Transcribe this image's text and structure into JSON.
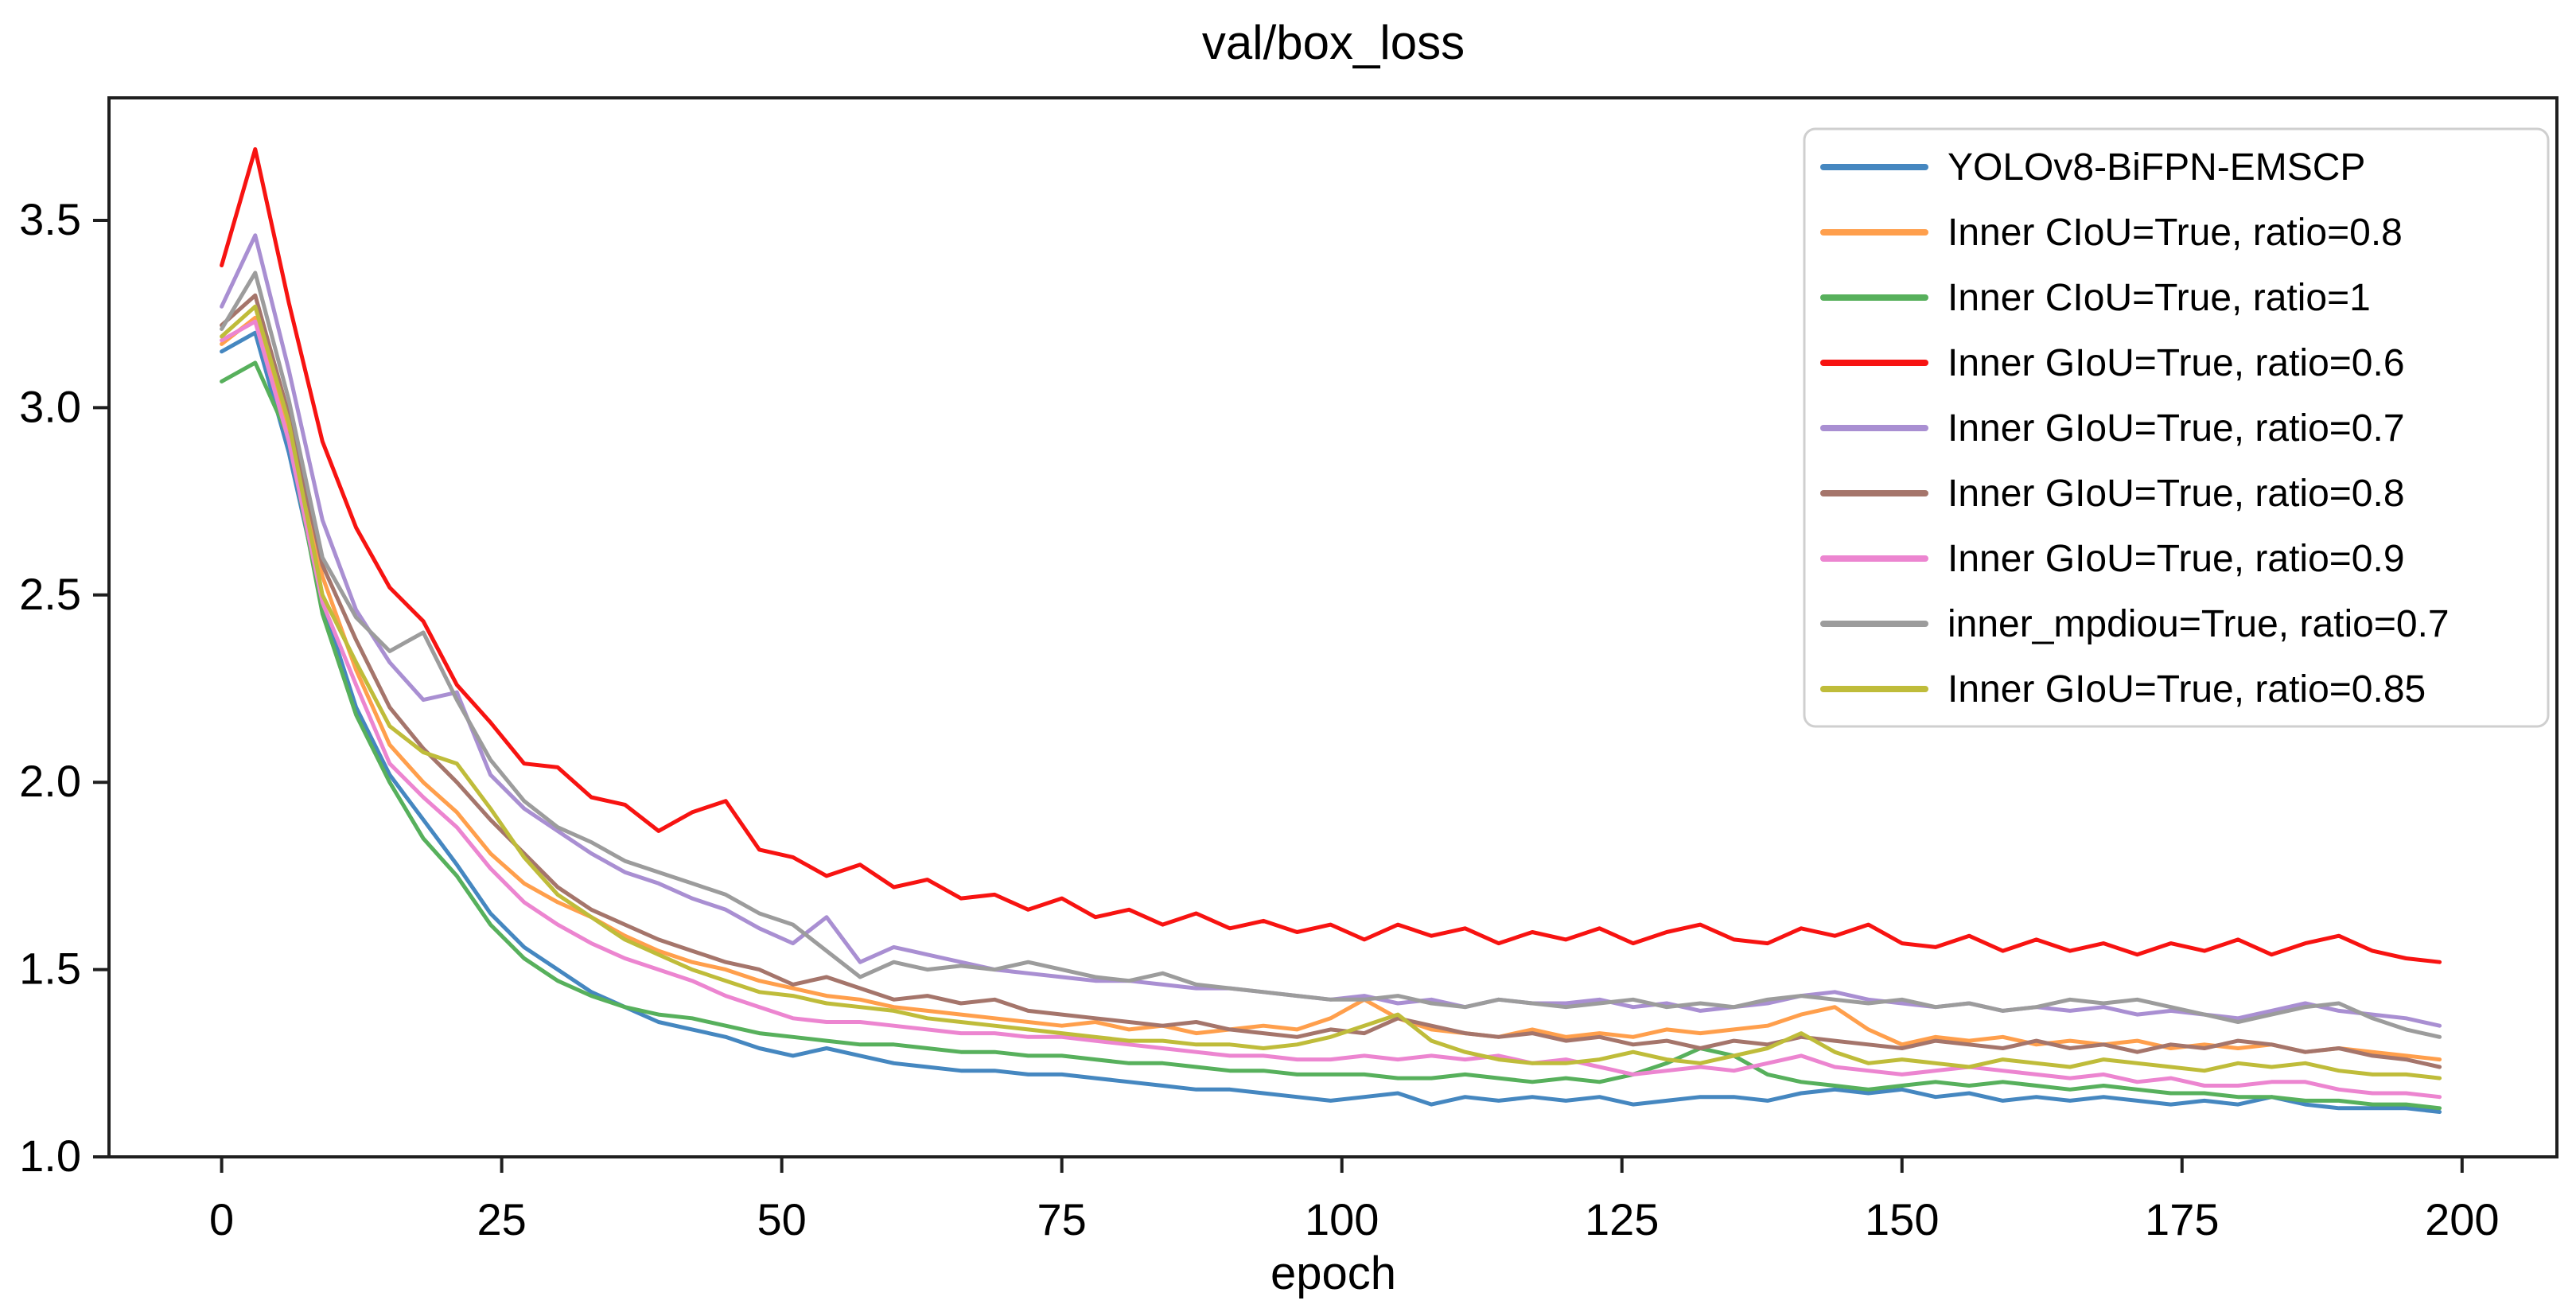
{
  "figure": {
    "title": "val/box_loss",
    "xlabel": "epoch"
  },
  "chart_data": {
    "type": "line",
    "title": "val/box_loss",
    "xlabel": "epoch",
    "ylabel": "",
    "xlim": [
      -10,
      208.5
    ],
    "ylim": [
      1.0,
      3.83
    ],
    "xticks": [
      "0",
      "25",
      "50",
      "75",
      "100",
      "125",
      "150",
      "175",
      "200"
    ],
    "yticks": [
      "1.0",
      "1.5",
      "2.0",
      "2.5",
      "3.0",
      "3.5"
    ],
    "grid": false,
    "legend_position": "upper right",
    "x": [
      0,
      3,
      6,
      9,
      12,
      15,
      18,
      21,
      24,
      27,
      30,
      33,
      36,
      39,
      42,
      45,
      48,
      51,
      54,
      57,
      60,
      63,
      66,
      69,
      72,
      75,
      78,
      81,
      84,
      87,
      90,
      93,
      96,
      99,
      102,
      105,
      108,
      111,
      114,
      117,
      120,
      123,
      126,
      129,
      132,
      135,
      138,
      141,
      144,
      147,
      150,
      153,
      156,
      159,
      162,
      165,
      168,
      171,
      174,
      177,
      180,
      183,
      186,
      189,
      192,
      195,
      198
    ],
    "series": [
      {
        "name": "YOLOv8-BiFPN-EMSCP",
        "color": "#4587c0",
        "values": [
          3.15,
          3.2,
          2.88,
          2.48,
          2.2,
          2.02,
          1.9,
          1.78,
          1.65,
          1.56,
          1.5,
          1.44,
          1.4,
          1.36,
          1.34,
          1.32,
          1.29,
          1.27,
          1.29,
          1.27,
          1.25,
          1.24,
          1.23,
          1.23,
          1.22,
          1.22,
          1.21,
          1.2,
          1.19,
          1.18,
          1.18,
          1.17,
          1.16,
          1.15,
          1.16,
          1.17,
          1.14,
          1.16,
          1.15,
          1.16,
          1.15,
          1.16,
          1.14,
          1.15,
          1.16,
          1.16,
          1.15,
          1.17,
          1.18,
          1.17,
          1.18,
          1.16,
          1.17,
          1.15,
          1.16,
          1.15,
          1.16,
          1.15,
          1.14,
          1.15,
          1.14,
          1.16,
          1.14,
          1.13,
          1.13,
          1.13,
          1.12
        ]
      },
      {
        "name": "Inner CIoU=True, ratio=0.8",
        "color": "#ff9f4c",
        "values": [
          3.17,
          3.24,
          2.93,
          2.55,
          2.3,
          2.1,
          2.0,
          1.92,
          1.81,
          1.73,
          1.68,
          1.64,
          1.59,
          1.55,
          1.52,
          1.5,
          1.47,
          1.45,
          1.43,
          1.42,
          1.4,
          1.39,
          1.38,
          1.37,
          1.36,
          1.35,
          1.36,
          1.34,
          1.35,
          1.33,
          1.34,
          1.35,
          1.34,
          1.37,
          1.42,
          1.37,
          1.34,
          1.33,
          1.32,
          1.34,
          1.32,
          1.33,
          1.32,
          1.34,
          1.33,
          1.34,
          1.35,
          1.38,
          1.4,
          1.34,
          1.3,
          1.32,
          1.31,
          1.32,
          1.3,
          1.31,
          1.3,
          1.31,
          1.29,
          1.3,
          1.29,
          1.3,
          1.28,
          1.29,
          1.28,
          1.27,
          1.26
        ]
      },
      {
        "name": "Inner CIoU=True, ratio=1",
        "color": "#57b05c",
        "values": [
          3.07,
          3.12,
          2.92,
          2.45,
          2.18,
          2.0,
          1.85,
          1.75,
          1.62,
          1.53,
          1.47,
          1.43,
          1.4,
          1.38,
          1.37,
          1.35,
          1.33,
          1.32,
          1.31,
          1.3,
          1.3,
          1.29,
          1.28,
          1.28,
          1.27,
          1.27,
          1.26,
          1.25,
          1.25,
          1.24,
          1.23,
          1.23,
          1.22,
          1.22,
          1.22,
          1.21,
          1.21,
          1.22,
          1.21,
          1.2,
          1.21,
          1.2,
          1.22,
          1.25,
          1.29,
          1.27,
          1.22,
          1.2,
          1.19,
          1.18,
          1.19,
          1.2,
          1.19,
          1.2,
          1.19,
          1.18,
          1.19,
          1.18,
          1.17,
          1.17,
          1.16,
          1.16,
          1.15,
          1.15,
          1.14,
          1.14,
          1.13
        ]
      },
      {
        "name": "Inner GIoU=True, ratio=0.6",
        "color": "#f71311",
        "values": [
          3.38,
          3.69,
          3.28,
          2.91,
          2.68,
          2.52,
          2.43,
          2.26,
          2.16,
          2.05,
          2.04,
          1.96,
          1.94,
          1.87,
          1.92,
          1.95,
          1.82,
          1.8,
          1.75,
          1.78,
          1.72,
          1.74,
          1.69,
          1.7,
          1.66,
          1.69,
          1.64,
          1.66,
          1.62,
          1.65,
          1.61,
          1.63,
          1.6,
          1.62,
          1.58,
          1.62,
          1.59,
          1.61,
          1.57,
          1.6,
          1.58,
          1.61,
          1.57,
          1.6,
          1.62,
          1.58,
          1.57,
          1.61,
          1.59,
          1.62,
          1.57,
          1.56,
          1.59,
          1.55,
          1.58,
          1.55,
          1.57,
          1.54,
          1.57,
          1.55,
          1.58,
          1.54,
          1.57,
          1.59,
          1.55,
          1.53,
          1.52
        ]
      },
      {
        "name": "Inner GIoU=True, ratio=0.7",
        "color": "#a98fd2",
        "values": [
          3.27,
          3.46,
          3.1,
          2.7,
          2.46,
          2.32,
          2.22,
          2.24,
          2.02,
          1.93,
          1.87,
          1.81,
          1.76,
          1.73,
          1.69,
          1.66,
          1.61,
          1.57,
          1.64,
          1.52,
          1.56,
          1.54,
          1.52,
          1.5,
          1.49,
          1.48,
          1.47,
          1.47,
          1.46,
          1.45,
          1.45,
          1.44,
          1.43,
          1.42,
          1.43,
          1.41,
          1.42,
          1.4,
          1.42,
          1.41,
          1.41,
          1.42,
          1.4,
          1.41,
          1.39,
          1.4,
          1.41,
          1.43,
          1.44,
          1.42,
          1.41,
          1.4,
          1.41,
          1.39,
          1.4,
          1.39,
          1.4,
          1.38,
          1.39,
          1.38,
          1.37,
          1.39,
          1.41,
          1.39,
          1.38,
          1.37,
          1.35
        ]
      },
      {
        "name": "Inner GIoU=True, ratio=0.8",
        "color": "#a5756b",
        "values": [
          3.22,
          3.3,
          2.98,
          2.58,
          2.38,
          2.2,
          2.09,
          2.0,
          1.9,
          1.81,
          1.72,
          1.66,
          1.62,
          1.58,
          1.55,
          1.52,
          1.5,
          1.46,
          1.48,
          1.45,
          1.42,
          1.43,
          1.41,
          1.42,
          1.39,
          1.38,
          1.37,
          1.36,
          1.35,
          1.36,
          1.34,
          1.33,
          1.32,
          1.34,
          1.33,
          1.37,
          1.35,
          1.33,
          1.32,
          1.33,
          1.31,
          1.32,
          1.3,
          1.31,
          1.29,
          1.31,
          1.3,
          1.32,
          1.31,
          1.3,
          1.29,
          1.31,
          1.3,
          1.29,
          1.31,
          1.29,
          1.3,
          1.28,
          1.3,
          1.29,
          1.31,
          1.3,
          1.28,
          1.29,
          1.27,
          1.26,
          1.24
        ]
      },
      {
        "name": "Inner GIoU=True, ratio=0.9",
        "color": "#ec85d0",
        "values": [
          3.18,
          3.23,
          2.91,
          2.48,
          2.26,
          2.05,
          1.96,
          1.88,
          1.77,
          1.68,
          1.62,
          1.57,
          1.53,
          1.5,
          1.47,
          1.43,
          1.4,
          1.37,
          1.36,
          1.36,
          1.35,
          1.34,
          1.33,
          1.33,
          1.32,
          1.32,
          1.31,
          1.3,
          1.29,
          1.28,
          1.27,
          1.27,
          1.26,
          1.26,
          1.27,
          1.26,
          1.27,
          1.26,
          1.27,
          1.25,
          1.26,
          1.24,
          1.22,
          1.23,
          1.24,
          1.23,
          1.25,
          1.27,
          1.24,
          1.23,
          1.22,
          1.23,
          1.24,
          1.23,
          1.22,
          1.21,
          1.22,
          1.2,
          1.21,
          1.19,
          1.19,
          1.2,
          1.2,
          1.18,
          1.17,
          1.17,
          1.16
        ]
      },
      {
        "name": "inner_mpdiou=True, ratio=0.7",
        "color": "#9c9c9c",
        "values": [
          3.21,
          3.36,
          3.02,
          2.6,
          2.44,
          2.35,
          2.4,
          2.22,
          2.06,
          1.95,
          1.88,
          1.84,
          1.79,
          1.76,
          1.73,
          1.7,
          1.65,
          1.62,
          1.55,
          1.48,
          1.52,
          1.5,
          1.51,
          1.5,
          1.52,
          1.5,
          1.48,
          1.47,
          1.49,
          1.46,
          1.45,
          1.44,
          1.43,
          1.42,
          1.42,
          1.43,
          1.41,
          1.4,
          1.42,
          1.41,
          1.4,
          1.41,
          1.42,
          1.4,
          1.41,
          1.4,
          1.42,
          1.43,
          1.42,
          1.41,
          1.42,
          1.4,
          1.41,
          1.39,
          1.4,
          1.42,
          1.41,
          1.42,
          1.4,
          1.38,
          1.36,
          1.38,
          1.4,
          1.41,
          1.37,
          1.34,
          1.32
        ]
      },
      {
        "name": "Inner GIoU=True, ratio=0.85",
        "color": "#bfbc3a",
        "values": [
          3.19,
          3.27,
          2.96,
          2.5,
          2.32,
          2.15,
          2.08,
          2.05,
          1.93,
          1.8,
          1.7,
          1.64,
          1.58,
          1.54,
          1.5,
          1.47,
          1.44,
          1.43,
          1.41,
          1.4,
          1.39,
          1.37,
          1.36,
          1.35,
          1.34,
          1.33,
          1.32,
          1.31,
          1.31,
          1.3,
          1.3,
          1.29,
          1.3,
          1.32,
          1.35,
          1.38,
          1.31,
          1.28,
          1.26,
          1.25,
          1.25,
          1.26,
          1.28,
          1.26,
          1.25,
          1.27,
          1.29,
          1.33,
          1.28,
          1.25,
          1.26,
          1.25,
          1.24,
          1.26,
          1.25,
          1.24,
          1.26,
          1.25,
          1.24,
          1.23,
          1.25,
          1.24,
          1.25,
          1.23,
          1.22,
          1.22,
          1.21
        ]
      }
    ]
  }
}
